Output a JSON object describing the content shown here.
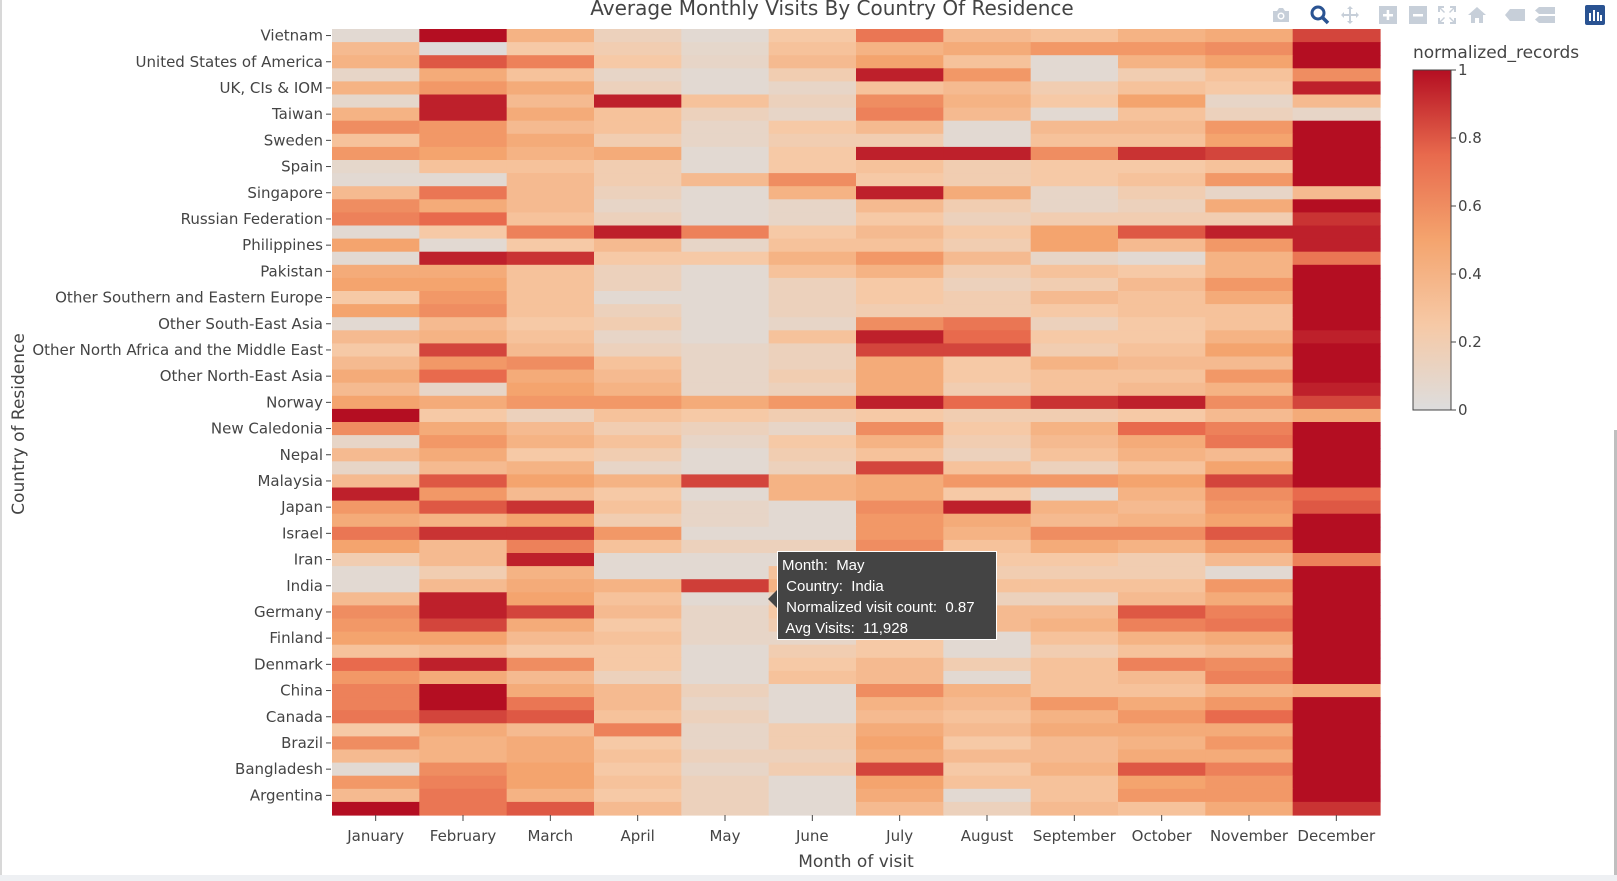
{
  "title": "Average Monthly Visits By Country Of Residence",
  "colors": {
    "scale": [
      "#dddddd",
      "#f6c9a6",
      "#f4a46e",
      "#e86a4d",
      "#b40e22"
    ],
    "text": "#444444",
    "modebar": "#c7cfd9",
    "modebar_active": "#2a5392"
  },
  "modebar": [
    "camera-icon",
    "zoom-icon",
    "pan-icon",
    "zoom-in-icon",
    "zoom-out-icon",
    "autoscale-icon",
    "home-icon",
    "spike-icon",
    "hover-compare-icon",
    "plotly-logo-icon"
  ],
  "tooltip": {
    "month": "Month:  May",
    "country": " Country:  India",
    "normalized": " Normalized visit count:  0.87",
    "avg": " Avg Visits:  11,928"
  },
  "chart_data": {
    "type": "heatmap",
    "title": "Average Monthly Visits By Country Of Residence",
    "xlabel": "Month of visit",
    "ylabel": "Country of Residence",
    "colorbar_title": "normalized_records",
    "colorbar_range": [
      0,
      1
    ],
    "colorbar_ticks": [
      "0",
      "0.2",
      "0.4",
      "0.6",
      "0.8",
      "1"
    ],
    "x": [
      "January",
      "February",
      "March",
      "April",
      "May",
      "June",
      "July",
      "August",
      "September",
      "October",
      "November",
      "December"
    ],
    "y_ticks_top_to_bottom": [
      "Vietnam",
      "United States of America",
      "UK, CIs & IOM",
      "Taiwan",
      "Sweden",
      "Spain",
      "Singapore",
      "Russian Federation",
      "Philippines",
      "Pakistan",
      "Other Southern and Eastern Europe",
      "Other South-East Asia",
      "Other North Africa and the Middle East",
      "Other North-East Asia",
      "Norway",
      "New Caledonia",
      "Nepal",
      "Malaysia",
      "Japan",
      "Israel",
      "Iran",
      "India",
      "Germany",
      "Finland",
      "Denmark",
      "China",
      "Canada",
      "Brazil",
      "Bangladesh",
      "Argentina"
    ],
    "rows_per_label": 2,
    "z_top_to_bottom": [
      [
        0.05,
        1.0,
        0.4,
        0.15,
        0.05,
        0.25,
        0.7,
        0.35,
        0.3,
        0.4,
        0.45,
        0.85
      ],
      [
        0.35,
        0.02,
        0.25,
        0.2,
        0.08,
        0.3,
        0.4,
        0.45,
        0.55,
        0.55,
        0.6,
        1.0
      ],
      [
        0.4,
        0.8,
        0.65,
        0.25,
        0.1,
        0.35,
        0.5,
        0.3,
        0.05,
        0.4,
        0.5,
        1.0
      ],
      [
        0.1,
        0.45,
        0.3,
        0.1,
        0.05,
        0.2,
        0.95,
        0.55,
        0.05,
        0.2,
        0.3,
        0.6
      ],
      [
        0.4,
        0.55,
        0.45,
        0.15,
        0.05,
        0.1,
        0.3,
        0.35,
        0.2,
        0.3,
        0.25,
        0.95
      ],
      [
        0.08,
        0.95,
        0.35,
        0.95,
        0.3,
        0.15,
        0.6,
        0.4,
        0.25,
        0.5,
        0.1,
        0.35
      ],
      [
        0.4,
        0.95,
        0.45,
        0.3,
        0.15,
        0.1,
        0.65,
        0.35,
        0.05,
        0.3,
        0.15,
        0.1
      ],
      [
        0.6,
        0.55,
        0.35,
        0.3,
        0.1,
        0.25,
        0.35,
        0.05,
        0.35,
        0.35,
        0.55,
        1.0
      ],
      [
        0.3,
        0.55,
        0.45,
        0.2,
        0.1,
        0.2,
        0.2,
        0.05,
        0.3,
        0.3,
        0.5,
        1.0
      ],
      [
        0.55,
        0.5,
        0.4,
        0.45,
        0.05,
        0.25,
        0.95,
        0.95,
        0.6,
        0.9,
        0.85,
        1.0
      ],
      [
        0.08,
        0.3,
        0.3,
        0.2,
        0.05,
        0.25,
        0.3,
        0.2,
        0.25,
        0.25,
        0.3,
        1.0
      ],
      [
        0.05,
        0.05,
        0.35,
        0.2,
        0.35,
        0.6,
        0.25,
        0.2,
        0.25,
        0.3,
        0.55,
        1.0
      ],
      [
        0.35,
        0.7,
        0.35,
        0.15,
        0.05,
        0.4,
        0.95,
        0.45,
        0.1,
        0.2,
        0.1,
        0.35
      ],
      [
        0.6,
        0.45,
        0.35,
        0.1,
        0.05,
        0.1,
        0.35,
        0.2,
        0.1,
        0.15,
        0.45,
        1.0
      ],
      [
        0.65,
        0.75,
        0.3,
        0.15,
        0.05,
        0.1,
        0.25,
        0.15,
        0.2,
        0.2,
        0.2,
        0.9
      ],
      [
        0.05,
        0.25,
        0.65,
        0.95,
        0.65,
        0.25,
        0.35,
        0.25,
        0.5,
        0.8,
        0.95,
        0.95
      ],
      [
        0.5,
        0.05,
        0.25,
        0.35,
        0.1,
        0.3,
        0.3,
        0.2,
        0.5,
        0.35,
        0.55,
        0.95
      ],
      [
        0.05,
        0.95,
        0.9,
        0.25,
        0.25,
        0.4,
        0.55,
        0.35,
        0.1,
        0.05,
        0.4,
        0.7
      ],
      [
        0.45,
        0.45,
        0.3,
        0.15,
        0.05,
        0.3,
        0.4,
        0.2,
        0.3,
        0.25,
        0.4,
        1.0
      ],
      [
        0.5,
        0.5,
        0.3,
        0.15,
        0.05,
        0.15,
        0.25,
        0.15,
        0.2,
        0.35,
        0.55,
        1.0
      ],
      [
        0.25,
        0.55,
        0.3,
        0.05,
        0.05,
        0.15,
        0.25,
        0.2,
        0.35,
        0.3,
        0.45,
        1.0
      ],
      [
        0.5,
        0.6,
        0.3,
        0.15,
        0.05,
        0.15,
        0.2,
        0.2,
        0.25,
        0.3,
        0.3,
        1.0
      ],
      [
        0.05,
        0.35,
        0.25,
        0.2,
        0.05,
        0.1,
        0.6,
        0.7,
        0.15,
        0.25,
        0.3,
        1.0
      ],
      [
        0.35,
        0.4,
        0.3,
        0.1,
        0.05,
        0.3,
        0.95,
        0.75,
        0.25,
        0.25,
        0.4,
        0.95
      ],
      [
        0.25,
        0.85,
        0.35,
        0.15,
        0.1,
        0.15,
        0.85,
        0.85,
        0.2,
        0.3,
        0.5,
        1.0
      ],
      [
        0.35,
        0.55,
        0.6,
        0.3,
        0.1,
        0.15,
        0.45,
        0.25,
        0.4,
        0.35,
        0.35,
        1.0
      ],
      [
        0.45,
        0.75,
        0.45,
        0.35,
        0.1,
        0.2,
        0.45,
        0.25,
        0.3,
        0.3,
        0.55,
        1.0
      ],
      [
        0.35,
        0.1,
        0.5,
        0.4,
        0.1,
        0.15,
        0.45,
        0.2,
        0.3,
        0.35,
        0.4,
        0.95
      ],
      [
        0.5,
        0.45,
        0.55,
        0.55,
        0.45,
        0.55,
        0.95,
        0.75,
        0.9,
        0.95,
        0.6,
        0.85
      ],
      [
        1.0,
        0.25,
        0.15,
        0.3,
        0.25,
        0.2,
        0.25,
        0.2,
        0.2,
        0.25,
        0.35,
        0.45
      ],
      [
        0.6,
        0.45,
        0.35,
        0.2,
        0.15,
        0.1,
        0.6,
        0.25,
        0.4,
        0.75,
        0.65,
        1.0
      ],
      [
        0.1,
        0.55,
        0.4,
        0.3,
        0.1,
        0.25,
        0.4,
        0.2,
        0.35,
        0.45,
        0.7,
        1.0
      ],
      [
        0.35,
        0.45,
        0.25,
        0.2,
        0.05,
        0.2,
        0.3,
        0.15,
        0.3,
        0.4,
        0.35,
        1.0
      ],
      [
        0.1,
        0.35,
        0.4,
        0.1,
        0.05,
        0.15,
        0.85,
        0.3,
        0.15,
        0.3,
        0.5,
        1.0
      ],
      [
        0.35,
        0.8,
        0.5,
        0.4,
        0.85,
        0.4,
        0.45,
        0.55,
        0.55,
        0.5,
        0.85,
        1.0
      ],
      [
        0.95,
        0.55,
        0.35,
        0.25,
        0.05,
        0.4,
        0.45,
        0.25,
        0.05,
        0.4,
        0.6,
        0.75
      ],
      [
        0.55,
        0.8,
        0.9,
        0.3,
        0.1,
        0.05,
        0.6,
        0.95,
        0.4,
        0.35,
        0.55,
        0.8
      ],
      [
        0.45,
        0.4,
        0.5,
        0.2,
        0.1,
        0.05,
        0.55,
        0.45,
        0.35,
        0.4,
        0.5,
        1.0
      ],
      [
        0.7,
        0.9,
        0.9,
        0.55,
        0.05,
        0.05,
        0.55,
        0.4,
        0.6,
        0.6,
        0.8,
        1.0
      ],
      [
        0.5,
        0.35,
        0.65,
        0.3,
        0.15,
        0.15,
        0.6,
        0.3,
        0.45,
        0.4,
        0.55,
        1.0
      ],
      [
        0.2,
        0.35,
        0.95,
        0.05,
        0.05,
        0.05,
        0.5,
        0.25,
        0.25,
        0.2,
        0.35,
        0.65
      ],
      [
        0.05,
        0.2,
        0.4,
        0.05,
        0.05,
        0.3,
        0.55,
        0.2,
        0.2,
        0.2,
        0.05,
        1.0
      ],
      [
        0.05,
        0.35,
        0.45,
        0.4,
        0.87,
        0.4,
        0.45,
        0.3,
        0.3,
        0.3,
        0.55,
        1.0
      ],
      [
        0.35,
        0.95,
        0.5,
        0.3,
        0.05,
        0.15,
        0.35,
        0.15,
        0.15,
        0.35,
        0.45,
        1.0
      ],
      [
        0.6,
        0.95,
        0.85,
        0.35,
        0.1,
        0.25,
        0.45,
        0.35,
        0.35,
        0.8,
        0.65,
        1.0
      ],
      [
        0.55,
        0.85,
        0.45,
        0.25,
        0.1,
        0.2,
        0.35,
        0.35,
        0.4,
        0.65,
        0.7,
        1.0
      ],
      [
        0.5,
        0.5,
        0.35,
        0.3,
        0.1,
        0.1,
        0.25,
        0.05,
        0.3,
        0.4,
        0.45,
        1.0
      ],
      [
        0.3,
        0.35,
        0.25,
        0.25,
        0.05,
        0.2,
        0.25,
        0.05,
        0.2,
        0.3,
        0.35,
        1.0
      ],
      [
        0.75,
        0.95,
        0.6,
        0.25,
        0.05,
        0.25,
        0.35,
        0.2,
        0.3,
        0.65,
        0.6,
        1.0
      ],
      [
        0.55,
        0.45,
        0.35,
        0.15,
        0.05,
        0.3,
        0.35,
        0.05,
        0.3,
        0.35,
        0.65,
        1.0
      ],
      [
        0.65,
        1.0,
        0.45,
        0.35,
        0.15,
        0.05,
        0.6,
        0.4,
        0.3,
        0.3,
        0.4,
        0.45
      ],
      [
        0.65,
        1.0,
        0.7,
        0.35,
        0.1,
        0.05,
        0.4,
        0.35,
        0.55,
        0.45,
        0.55,
        1.0
      ],
      [
        0.7,
        0.85,
        0.8,
        0.3,
        0.15,
        0.05,
        0.35,
        0.3,
        0.4,
        0.55,
        0.75,
        1.0
      ],
      [
        0.25,
        0.45,
        0.35,
        0.65,
        0.1,
        0.2,
        0.45,
        0.35,
        0.45,
        0.45,
        0.45,
        1.0
      ],
      [
        0.6,
        0.4,
        0.45,
        0.25,
        0.1,
        0.2,
        0.5,
        0.25,
        0.35,
        0.4,
        0.55,
        1.0
      ],
      [
        0.35,
        0.4,
        0.45,
        0.3,
        0.15,
        0.15,
        0.45,
        0.35,
        0.35,
        0.45,
        0.45,
        1.0
      ],
      [
        0.05,
        0.6,
        0.5,
        0.25,
        0.1,
        0.2,
        0.85,
        0.25,
        0.4,
        0.8,
        0.65,
        1.0
      ],
      [
        0.55,
        0.65,
        0.5,
        0.3,
        0.15,
        0.05,
        0.5,
        0.3,
        0.3,
        0.5,
        0.55,
        1.0
      ],
      [
        0.35,
        0.7,
        0.4,
        0.25,
        0.15,
        0.05,
        0.45,
        0.05,
        0.3,
        0.55,
        0.55,
        1.0
      ],
      [
        1.0,
        0.7,
        0.8,
        0.35,
        0.15,
        0.05,
        0.35,
        0.15,
        0.35,
        0.3,
        0.45,
        0.9
      ]
    ]
  }
}
